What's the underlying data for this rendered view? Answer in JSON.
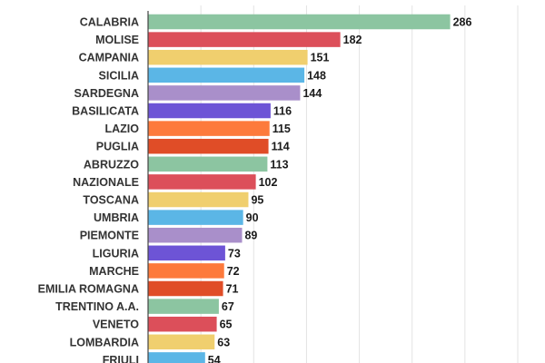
{
  "chart_data": {
    "type": "bar",
    "orientation": "horizontal",
    "categories": [
      "CALABRIA",
      "MOLISE",
      "CAMPANIA",
      "SICILIA",
      "SARDEGNA",
      "BASILICATA",
      "LAZIO",
      "PUGLIA",
      "ABRUZZO",
      "NAZIONALE",
      "TOSCANA",
      "UMBRIA",
      "PIEMONTE",
      "LIGURIA",
      "MARCHE",
      "EMILIA ROMAGNA",
      "TRENTINO A.A.",
      "VENETO",
      "LOMBARDIA",
      "FRIULI"
    ],
    "values": [
      286,
      182,
      151,
      148,
      144,
      116,
      115,
      114,
      113,
      102,
      95,
      90,
      89,
      73,
      72,
      71,
      67,
      65,
      63,
      54
    ],
    "colors": [
      "#8cc5a1",
      "#dc4f5a",
      "#f0cf6e",
      "#5bb6e6",
      "#a98fca",
      "#6d54d6",
      "#fd7a3c",
      "#e04d27",
      "#8cc5a1",
      "#dc4f5a",
      "#f0cf6e",
      "#5bb6e6",
      "#a98fca",
      "#6d54d6",
      "#fd7a3c",
      "#e04d27",
      "#8cc5a1",
      "#dc4f5a",
      "#f0cf6e",
      "#5bb6e6"
    ],
    "title": "",
    "xlabel": "",
    "ylabel": "",
    "xlim": [
      0,
      350
    ],
    "grid": true,
    "legend": "none"
  }
}
